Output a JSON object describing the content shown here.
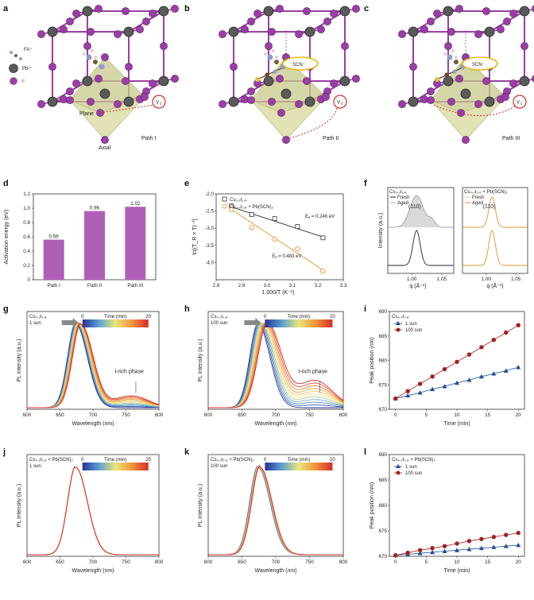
{
  "panel_labels": [
    "a",
    "b",
    "c",
    "d",
    "e",
    "f",
    "g",
    "h",
    "i",
    "j",
    "k",
    "l"
  ],
  "structures": {
    "legend": [
      "FA⁺",
      "Pb²⁺",
      "I⁻"
    ],
    "scn_label": "SCN⁻",
    "vi_label": "V",
    "vi_sub": "I",
    "plane_label": "Plane",
    "axial_label": "Axial",
    "paths": [
      "Path I",
      "Path II",
      "Path III"
    ]
  },
  "colors": {
    "purple": "#b05fb8",
    "orange": "#e0922c",
    "navy": "#1f4e99",
    "darkred": "#a32020",
    "gray": "#444444",
    "olive": "#c8c98a"
  },
  "chart_data": [
    {
      "panel": "d",
      "type": "bar",
      "categories": [
        "Path I",
        "Path II",
        "Path III"
      ],
      "values": [
        0.56,
        0.96,
        1.02
      ],
      "value_labels": [
        "0.56",
        "0.96",
        "1.02"
      ],
      "ylabel": "Activation energy (eV)",
      "ylim": [
        0,
        1.2
      ],
      "yticks": [
        "0",
        "0.2",
        "0.4",
        "0.6",
        "0.8",
        "1.0",
        "1.2"
      ],
      "color": "#b05fb8"
    },
    {
      "panel": "e",
      "type": "scatter",
      "xlabel": "1,000/T (K⁻¹)",
      "ylabel": "ln[(T_R × T)⁻¹]",
      "xlim": [
        2.8,
        3.3
      ],
      "ylim": [
        -4.5,
        -2.0
      ],
      "xticks": [
        "2.8",
        "2.9",
        "3.0",
        "3.1",
        "3.2",
        "3.3"
      ],
      "yticks": [
        "-2.0",
        "-2.5",
        "-3.0",
        "-3.5",
        "-4.0"
      ],
      "series": [
        {
          "name": "Cs₀.₂I₁.₈",
          "marker": "square",
          "color": "#333333",
          "x": [
            2.86,
            2.94,
            3.03,
            3.12,
            3.22
          ],
          "y": [
            -2.35,
            -2.6,
            -2.72,
            -2.95,
            -3.28
          ],
          "fit": [
            [
              2.86,
              -2.38
            ],
            [
              3.23,
              -3.28
            ]
          ],
          "annotation": "Eₐ = 0.246 eV"
        },
        {
          "name": "Cs₀.₂I₁.₈ + Pb(SCN)₂",
          "marker": "circle",
          "color": "#e0922c",
          "x": [
            2.86,
            2.94,
            3.03,
            3.12,
            3.22
          ],
          "y": [
            -2.45,
            -2.98,
            -3.32,
            -3.6,
            -4.25
          ],
          "fit": [
            [
              2.86,
              -2.45
            ],
            [
              3.23,
              -4.27
            ]
          ],
          "annotation": "Eₐ = 0.483 eV"
        }
      ]
    },
    {
      "panel": "f",
      "type": "line",
      "subpanels": [
        {
          "title": "Cs₀.₂I₁.₈",
          "series": [
            {
              "name": "Fresh",
              "color": "#222222"
            },
            {
              "name": "Aged",
              "color": "#b8b8b8"
            }
          ],
          "peak_label": "(110)"
        },
        {
          "title": "Cs₀.₂I₁.₈ + Pb(SCN)₂",
          "series": [
            {
              "name": "Fresh",
              "color": "#f3c98f"
            },
            {
              "name": "Aged",
              "color": "#e0922c"
            }
          ],
          "peak_label": "(110)"
        }
      ],
      "xlabel": "q (Å⁻¹)",
      "ylabel": "Intensity (a.u.)",
      "xlim": [
        0.96,
        1.07
      ],
      "xticks": [
        "1.00",
        "1.05"
      ]
    },
    {
      "panel": "g",
      "type": "line",
      "title": "Cs₀.₂I₁.₈",
      "condition": "1 sun",
      "xlabel": "Wavelength (nm)",
      "ylabel": "PL intensity (a.u.)",
      "xlim": [
        600,
        800
      ],
      "xticks": [
        "600",
        "650",
        "700",
        "750",
        "800"
      ],
      "colorbar": {
        "label": "Time (min)",
        "min": "0",
        "max": "20"
      },
      "annotation": "I-rich phase"
    },
    {
      "panel": "h",
      "type": "line",
      "title": "Cs₀.₂I₁.₈",
      "condition": "100 sun",
      "xlabel": "Wavelength (nm)",
      "ylabel": "PL intensity (a.u.)",
      "xlim": [
        600,
        800
      ],
      "xticks": [
        "600",
        "650",
        "700",
        "750",
        "800"
      ],
      "colorbar": {
        "label": "Time (min)",
        "min": "0",
        "max": "20"
      },
      "annotation": "I-rich phase"
    },
    {
      "panel": "i",
      "type": "line",
      "title": "Cs₀.₂I₁.₈",
      "xlabel": "Time (min)",
      "ylabel": "Peak position (nm)",
      "xlim": [
        0,
        20
      ],
      "ylim": [
        670,
        690
      ],
      "xticks": [
        "0",
        "5",
        "10",
        "15",
        "20"
      ],
      "yticks": [
        "670",
        "675",
        "680",
        "685",
        "690"
      ],
      "series": [
        {
          "name": "1 sun",
          "marker": "triangle",
          "color": "#1f4e99",
          "x": [
            0,
            2,
            4,
            6,
            8,
            10,
            12,
            14,
            16,
            18,
            20
          ],
          "y": [
            672.2,
            672.8,
            673.4,
            674.1,
            674.7,
            675.4,
            676.0,
            676.7,
            677.3,
            677.9,
            678.6
          ]
        },
        {
          "name": "100 sun",
          "marker": "circle",
          "color": "#a32020",
          "x": [
            0,
            2,
            4,
            6,
            8,
            10,
            12,
            14,
            16,
            18,
            20
          ],
          "y": [
            672.2,
            673.7,
            675.2,
            676.7,
            678.2,
            679.7,
            681.2,
            682.7,
            684.2,
            685.7,
            687.2
          ]
        }
      ]
    },
    {
      "panel": "j",
      "type": "line",
      "title": "Cs₀.₂I₁.₈ + Pb(SCN)₂",
      "condition": "1 sun",
      "xlabel": "Wavelength (nm)",
      "ylabel": "PL intensity (a.u.)",
      "xlim": [
        600,
        800
      ],
      "xticks": [
        "600",
        "650",
        "700",
        "750",
        "800"
      ],
      "colorbar": {
        "label": "Time (min)",
        "min": "0",
        "max": "20"
      }
    },
    {
      "panel": "k",
      "type": "line",
      "title": "Cs₀.₂I₁.₈ + Pb(SCN)₂",
      "condition": "100 sun",
      "xlabel": "Wavelength (nm)",
      "ylabel": "PL intensity (a.u.)",
      "xlim": [
        600,
        800
      ],
      "xticks": [
        "600",
        "650",
        "700",
        "750",
        "800"
      ],
      "colorbar": {
        "label": "Time (min)",
        "min": "0",
        "max": "20"
      }
    },
    {
      "panel": "l",
      "type": "line",
      "title": "Cs₀.₂I₁.₈ + Pb(SCN)₂",
      "xlabel": "Time (min)",
      "ylabel": "Peak position (nm)",
      "xlim": [
        0,
        20
      ],
      "ylim": [
        670,
        690
      ],
      "xticks": [
        "0",
        "5",
        "10",
        "15",
        "20"
      ],
      "yticks": [
        "670",
        "675",
        "680",
        "685",
        "690"
      ],
      "series": [
        {
          "name": "1 sun",
          "marker": "triangle",
          "color": "#1f4e99",
          "x": [
            0,
            2,
            4,
            6,
            8,
            10,
            12,
            14,
            16,
            18,
            20
          ],
          "y": [
            670.2,
            670.4,
            670.6,
            670.8,
            671.0,
            671.2,
            671.4,
            671.6,
            671.8,
            672.0,
            672.2
          ]
        },
        {
          "name": "100 sun",
          "marker": "circle",
          "color": "#a32020",
          "x": [
            0,
            2,
            4,
            6,
            8,
            10,
            12,
            14,
            16,
            18,
            20
          ],
          "y": [
            670.2,
            670.7,
            671.2,
            671.6,
            672.0,
            672.5,
            673.0,
            673.4,
            673.8,
            674.2,
            674.6
          ]
        }
      ]
    }
  ]
}
